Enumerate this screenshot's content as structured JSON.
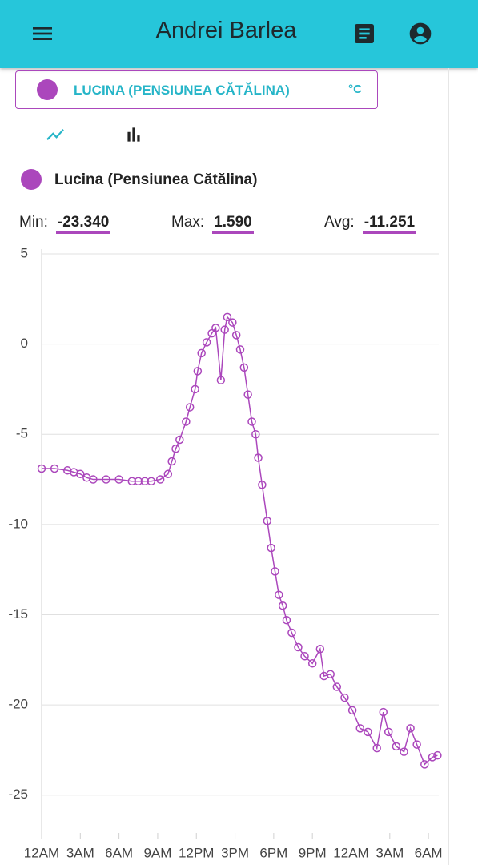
{
  "header": {
    "title": "Andrei Barlea"
  },
  "selector": {
    "station": "LUCINA (PENSIUNEA CĂTĂLINA)",
    "unit": "°C"
  },
  "stats": [
    {
      "label": "Min:",
      "value": "-23.340"
    },
    {
      "label": "Max:",
      "value": "1.590"
    },
    {
      "label": "Avg:",
      "value": "-11.251"
    }
  ],
  "chart_data": {
    "type": "line",
    "grid": true,
    "xlim": [
      0,
      30.8
    ],
    "ylim": [
      -27.1,
      5
    ],
    "xticks": [
      {
        "value": 0,
        "label": "12AM"
      },
      {
        "value": 3,
        "label": "3AM"
      },
      {
        "value": 6,
        "label": "6AM"
      },
      {
        "value": 9,
        "label": "9AM"
      },
      {
        "value": 12,
        "label": "12PM"
      },
      {
        "value": 15,
        "label": "3PM"
      },
      {
        "value": 18,
        "label": "6PM"
      },
      {
        "value": 21,
        "label": "9PM"
      },
      {
        "value": 24,
        "label": "12AM"
      },
      {
        "value": 27,
        "label": "3AM"
      },
      {
        "value": 30,
        "label": "6AM"
      }
    ],
    "yticks": [
      5,
      0,
      -5,
      -10,
      -15,
      -20,
      -25
    ],
    "x": [
      0,
      1,
      2,
      2.5,
      3,
      3.5,
      4,
      5,
      6,
      7,
      7.5,
      8,
      8.5,
      9.2,
      9.8,
      10.1,
      10.4,
      10.7,
      11.2,
      11.5,
      11.9,
      12.1,
      12.4,
      12.8,
      13.2,
      13.5,
      13.9,
      14.2,
      14.4,
      14.8,
      15.1,
      15.4,
      15.7,
      16.0,
      16.3,
      16.6,
      16.8,
      17.1,
      17.5,
      17.8,
      18.1,
      18.4,
      18.7,
      19.0,
      19.4,
      19.9,
      20.4,
      21.0,
      21.6,
      21.9,
      22.4,
      22.9,
      23.5,
      24.1,
      24.7,
      25.3,
      26.0,
      26.5,
      26.9,
      27.5,
      28.1,
      28.6,
      29.1,
      29.7,
      30.3,
      30.7
    ],
    "series": [
      {
        "name": "Lucina (Pensiunea Cătălina)",
        "color": "#ab47bc",
        "values": [
          -6.9,
          -6.9,
          -7.0,
          -7.1,
          -7.2,
          -7.4,
          -7.5,
          -7.5,
          -7.5,
          -7.6,
          -7.6,
          -7.6,
          -7.6,
          -7.5,
          -7.2,
          -6.5,
          -5.8,
          -5.3,
          -4.3,
          -3.5,
          -2.5,
          -1.5,
          -0.5,
          0.1,
          0.6,
          0.9,
          -2.0,
          0.8,
          1.5,
          1.2,
          0.5,
          -0.3,
          -1.3,
          -2.8,
          -4.3,
          -5.0,
          -6.3,
          -7.8,
          -9.8,
          -11.3,
          -12.6,
          -13.9,
          -14.5,
          -15.3,
          -16.0,
          -16.8,
          -17.3,
          -17.7,
          -16.9,
          -18.4,
          -18.3,
          -19.0,
          -19.6,
          -20.3,
          -21.3,
          -21.5,
          -22.4,
          -20.4,
          -21.5,
          -22.3,
          -22.6,
          -21.3,
          -22.2,
          -23.3,
          -22.9,
          -22.8
        ]
      }
    ]
  }
}
